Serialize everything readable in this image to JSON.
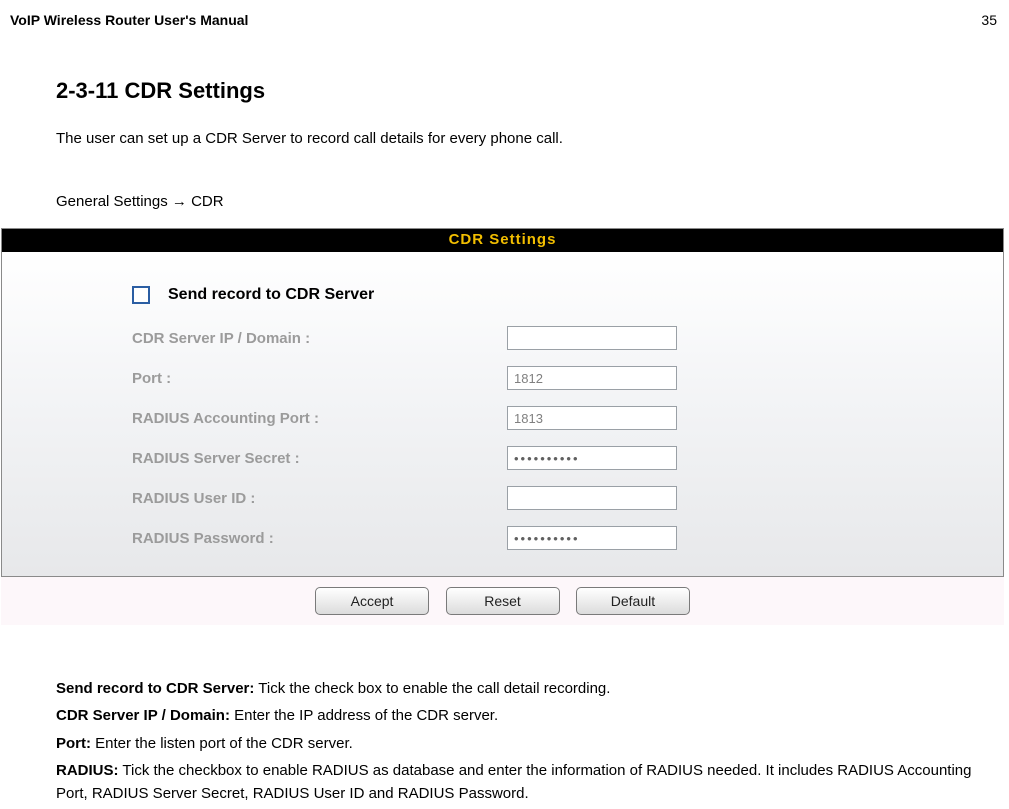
{
  "doc": {
    "header_title": "VoIP Wireless Router User's Manual",
    "page_number": "35"
  },
  "section": {
    "title": "2-3-11 CDR Settings",
    "intro": "The user can set up a CDR Server to record call details for every phone call.",
    "breadcrumb_prefix": "General Settings  →  CDR"
  },
  "panel": {
    "title": "CDR Settings",
    "send_label": "Send record to CDR Server",
    "rows": {
      "cdr_ip_label": "CDR Server IP / Domain :",
      "cdr_ip_value": "",
      "port_label": "Port :",
      "port_value": "1812",
      "acct_port_label": "RADIUS Accounting Port :",
      "acct_port_value": "1813",
      "secret_label": "RADIUS Server Secret :",
      "secret_value": "••••••••••",
      "user_label": "RADIUS User ID :",
      "user_value": "",
      "pw_label": "RADIUS Password :",
      "pw_value": "••••••••••"
    },
    "buttons": {
      "accept": "Accept",
      "reset": "Reset",
      "default": "Default"
    }
  },
  "descriptions": {
    "send_b": "Send record to CDR Server:",
    "send_t": " Tick the check box to enable the call detail recording.",
    "ip_b": "CDR Server IP / Domain:",
    "ip_t": " Enter the IP address of the CDR server.",
    "port_b": "Port:",
    "port_t": " Enter the listen port of the CDR server.",
    "radius_b": "RADIUS:",
    "radius_t": " Tick the checkbox to enable RADIUS as database and enter the information of RADIUS needed. It includes RADIUS Accounting Port, RADIUS Server Secret, RADIUS User ID and RADIUS Password."
  }
}
